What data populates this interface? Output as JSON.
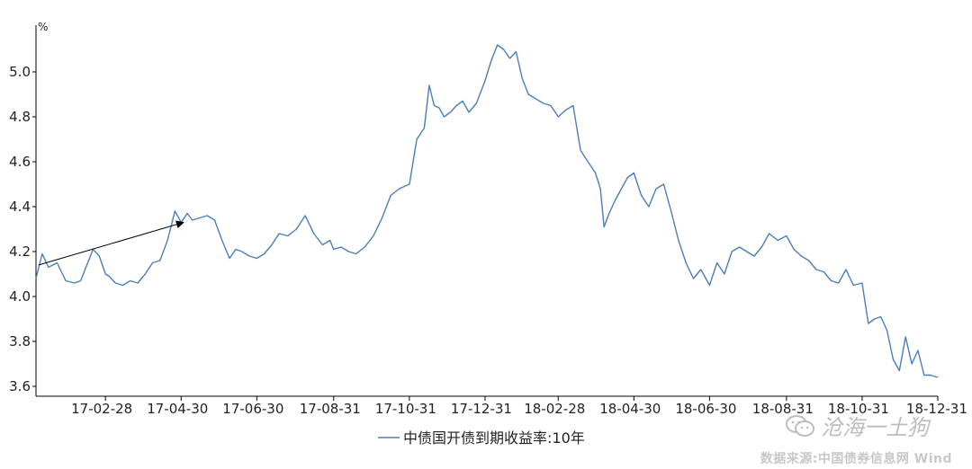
{
  "watermark": {
    "text": "沧海一土狗",
    "icon": "wechat-icon"
  },
  "source": "数据来源:中国债券信息网 Wind",
  "colors": {
    "line": "#4a7ebb",
    "axis": "#000000",
    "arrow": "#000000"
  },
  "chart_data": {
    "type": "line",
    "title": "",
    "ylabel": "%",
    "xlabel": "",
    "ylim": [
      3.6,
      5.2
    ],
    "yticks": [
      3.6,
      3.8,
      4.0,
      4.2,
      4.4,
      4.6,
      4.8,
      5.0
    ],
    "ytick_labels": [
      "3.6",
      "3.8",
      "4.0",
      "4.2",
      "4.4",
      "4.6",
      "4.8",
      "5.0"
    ],
    "xlim": [
      "2017-01-03",
      "2018-12-31"
    ],
    "xticks": [
      "2017-02-28",
      "2017-04-30",
      "2017-06-30",
      "2017-08-31",
      "2017-10-31",
      "2017-12-31",
      "2018-02-28",
      "2018-04-30",
      "2018-06-30",
      "2018-08-31",
      "2018-10-31",
      "2018-12-31"
    ],
    "xtick_labels": [
      "17-02-28",
      "17-04-30",
      "17-06-30",
      "17-08-31",
      "17-10-31",
      "17-12-31",
      "18-02-28",
      "18-04-30",
      "18-06-30",
      "18-08-31",
      "18-10-31",
      "18-12-31"
    ],
    "grid": false,
    "legend": "bottom-center",
    "annotation": {
      "type": "arrow",
      "from": [
        "2017-01-05",
        4.14
      ],
      "to": [
        "2017-05-02",
        4.33
      ]
    },
    "series": [
      {
        "name": "中债国开债到期收益率:10年",
        "x": [
          "2017-01-03",
          "2017-01-08",
          "2017-01-13",
          "2017-01-20",
          "2017-01-27",
          "2017-02-03",
          "2017-02-08",
          "2017-02-13",
          "2017-02-18",
          "2017-02-23",
          "2017-02-28",
          "2017-03-03",
          "2017-03-08",
          "2017-03-14",
          "2017-03-20",
          "2017-03-26",
          "2017-04-01",
          "2017-04-07",
          "2017-04-13",
          "2017-04-19",
          "2017-04-25",
          "2017-04-30",
          "2017-05-05",
          "2017-05-09",
          "2017-05-15",
          "2017-05-21",
          "2017-05-27",
          "2017-06-02",
          "2017-06-08",
          "2017-06-13",
          "2017-06-18",
          "2017-06-24",
          "2017-06-30",
          "2017-07-06",
          "2017-07-12",
          "2017-07-18",
          "2017-07-25",
          "2017-08-01",
          "2017-08-08",
          "2017-08-15",
          "2017-08-22",
          "2017-08-28",
          "2017-08-31",
          "2017-09-06",
          "2017-09-12",
          "2017-09-18",
          "2017-09-25",
          "2017-10-02",
          "2017-10-09",
          "2017-10-16",
          "2017-10-23",
          "2017-10-31",
          "2017-11-06",
          "2017-11-12",
          "2017-11-16",
          "2017-11-20",
          "2017-11-24",
          "2017-11-28",
          "2017-12-03",
          "2017-12-08",
          "2017-12-13",
          "2017-12-18",
          "2017-12-24",
          "2017-12-31",
          "2018-01-05",
          "2018-01-10",
          "2018-01-15",
          "2018-01-20",
          "2018-01-25",
          "2018-01-30",
          "2018-02-04",
          "2018-02-10",
          "2018-02-16",
          "2018-02-22",
          "2018-02-28",
          "2018-03-06",
          "2018-03-12",
          "2018-03-18",
          "2018-03-24",
          "2018-03-30",
          "2018-04-03",
          "2018-04-06",
          "2018-04-10",
          "2018-04-15",
          "2018-04-20",
          "2018-04-25",
          "2018-04-30",
          "2018-05-06",
          "2018-05-12",
          "2018-05-18",
          "2018-05-24",
          "2018-05-30",
          "2018-06-05",
          "2018-06-11",
          "2018-06-17",
          "2018-06-23",
          "2018-06-30",
          "2018-07-06",
          "2018-07-12",
          "2018-07-18",
          "2018-07-24",
          "2018-07-30",
          "2018-08-05",
          "2018-08-11",
          "2018-08-17",
          "2018-08-24",
          "2018-08-31",
          "2018-09-06",
          "2018-09-12",
          "2018-09-18",
          "2018-09-24",
          "2018-09-30",
          "2018-10-06",
          "2018-10-12",
          "2018-10-18",
          "2018-10-24",
          "2018-10-31",
          "2018-11-05",
          "2018-11-10",
          "2018-11-15",
          "2018-11-20",
          "2018-11-25",
          "2018-11-30",
          "2018-12-05",
          "2018-12-10",
          "2018-12-15",
          "2018-12-20",
          "2018-12-25",
          "2018-12-31"
        ],
        "y": [
          4.08,
          4.19,
          4.13,
          4.15,
          4.07,
          4.06,
          4.07,
          4.14,
          4.21,
          4.18,
          4.1,
          4.09,
          4.06,
          4.05,
          4.07,
          4.06,
          4.1,
          4.15,
          4.16,
          4.25,
          4.38,
          4.33,
          4.37,
          4.34,
          4.35,
          4.36,
          4.34,
          4.25,
          4.17,
          4.21,
          4.2,
          4.18,
          4.17,
          4.19,
          4.23,
          4.28,
          4.27,
          4.3,
          4.36,
          4.28,
          4.23,
          4.25,
          4.21,
          4.22,
          4.2,
          4.19,
          4.22,
          4.27,
          4.35,
          4.45,
          4.48,
          4.5,
          4.7,
          4.75,
          4.94,
          4.85,
          4.84,
          4.8,
          4.82,
          4.85,
          4.87,
          4.82,
          4.86,
          4.96,
          5.05,
          5.12,
          5.1,
          5.06,
          5.09,
          4.97,
          4.9,
          4.88,
          4.86,
          4.85,
          4.8,
          4.83,
          4.85,
          4.65,
          4.6,
          4.55,
          4.48,
          4.31,
          4.37,
          4.43,
          4.48,
          4.53,
          4.55,
          4.45,
          4.4,
          4.48,
          4.5,
          4.38,
          4.25,
          4.15,
          4.08,
          4.12,
          4.05,
          4.15,
          4.1,
          4.2,
          4.22,
          4.2,
          4.18,
          4.22,
          4.28,
          4.25,
          4.27,
          4.21,
          4.18,
          4.16,
          4.12,
          4.11,
          4.07,
          4.06,
          4.12,
          4.05,
          4.06,
          3.88,
          3.9,
          3.91,
          3.85,
          3.72,
          3.67,
          3.82,
          3.7,
          3.76,
          3.65,
          3.65,
          3.64
        ]
      }
    ]
  }
}
